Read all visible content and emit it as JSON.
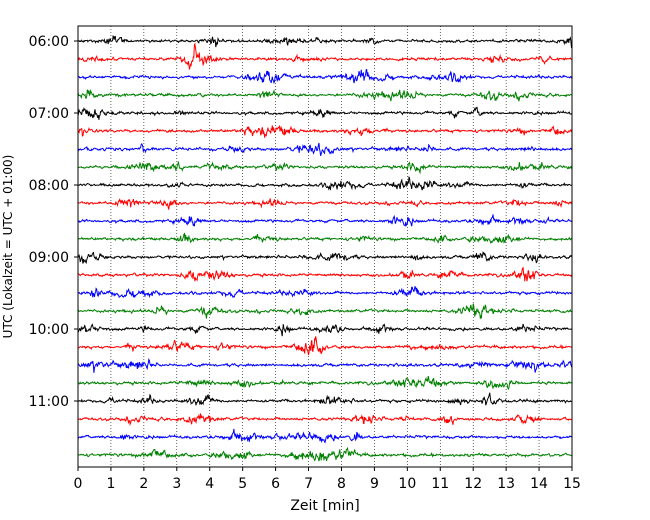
{
  "chart_data": {
    "type": "line",
    "title": "",
    "xlabel": "Zeit  [min]",
    "ylabel": "UTC (Lokalzeit = UTC + 01:00)",
    "xlim": [
      0,
      15
    ],
    "x_ticks": [
      "0",
      "1",
      "2",
      "3",
      "4",
      "5",
      "6",
      "7",
      "8",
      "9",
      "10",
      "11",
      "12",
      "13",
      "14",
      "15"
    ],
    "y_tick_labels": [
      "06:00",
      "07:00",
      "08:00",
      "09:00",
      "10:00",
      "11:00"
    ],
    "trace_start_times": [
      "06:00",
      "06:15",
      "06:30",
      "06:45",
      "07:00",
      "07:15",
      "07:30",
      "07:45",
      "08:00",
      "08:15",
      "08:30",
      "08:45",
      "09:00",
      "09:15",
      "09:30",
      "09:45",
      "10:00",
      "10:15",
      "10:30",
      "10:45",
      "11:00",
      "11:15",
      "11:30",
      "11:45"
    ],
    "trace_colors_cycle": [
      "#000000",
      "#ff0000",
      "#0000ff",
      "#008000"
    ],
    "trace_minutes": 15,
    "grid": "vertical dotted lines at each minute"
  }
}
